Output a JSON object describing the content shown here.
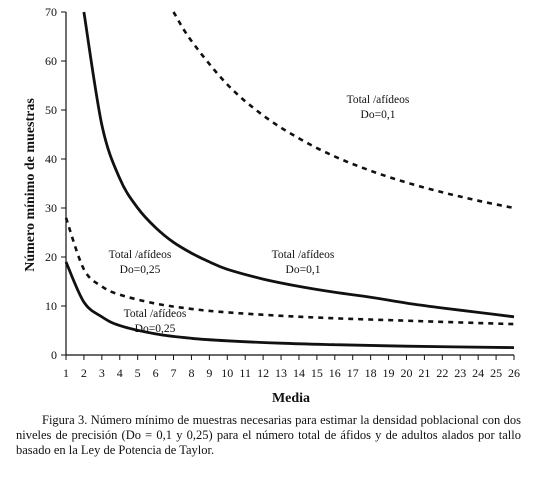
{
  "chart_data": {
    "type": "line",
    "xlabel": "Media",
    "ylabel": "Número mínimo de muestras",
    "xlim": [
      1,
      26
    ],
    "ylim": [
      0,
      70
    ],
    "x_ticks": [
      1,
      2,
      3,
      4,
      5,
      6,
      7,
      8,
      9,
      10,
      11,
      12,
      13,
      14,
      15,
      16,
      17,
      18,
      19,
      20,
      21,
      22,
      23,
      24,
      25,
      26
    ],
    "y_ticks": [
      0,
      10,
      20,
      30,
      40,
      50,
      60,
      70
    ],
    "grid": false,
    "legend": "none",
    "series": [
      {
        "name": "Total /afídeos Do=0,1",
        "label_lines": [
          "Total /afídeos",
          "Do=0,1"
        ],
        "style": "dashed",
        "x": [
          7,
          8,
          10,
          12,
          14,
          16,
          18,
          20,
          22,
          24,
          26
        ],
        "y": [
          70,
          64.1,
          55.2,
          48.9,
          44.2,
          40.5,
          37.6,
          35.2,
          33.2,
          31.5,
          30
        ]
      },
      {
        "name": "Total /afídeos Do=0,25",
        "label_lines": [
          "Total /afídeos",
          "Do=0,25"
        ],
        "style": "dashed",
        "x": [
          1,
          2,
          3,
          4,
          6,
          8,
          10,
          13,
          16,
          20,
          26
        ],
        "y": [
          28,
          17.5,
          14,
          12.3,
          10.5,
          9.4,
          8.7,
          8,
          7.5,
          7,
          6.3
        ]
      },
      {
        "name": "Total /afídeos Do=0,1",
        "label_lines": [
          "Total /afídeos",
          "Do=0,1"
        ],
        "style": "solid",
        "x": [
          2,
          3,
          4,
          5,
          6,
          7,
          8,
          9,
          10,
          12,
          14,
          16,
          18,
          20,
          22,
          24,
          26
        ],
        "y": [
          70,
          47,
          36,
          30,
          26,
          23,
          20.8,
          19,
          17.5,
          15.5,
          14,
          12.8,
          11.8,
          10.6,
          9.6,
          8.7,
          7.8
        ]
      },
      {
        "name": "Total /afídeos Do=0,25",
        "label_lines": [
          "Total /afídeos",
          "Do=0,25"
        ],
        "style": "solid",
        "x": [
          1,
          2,
          3,
          4,
          6,
          8,
          10,
          13,
          16,
          20,
          26
        ],
        "y": [
          19,
          10.8,
          7.8,
          6,
          4.3,
          3.4,
          2.9,
          2.4,
          2.1,
          1.8,
          1.5
        ]
      }
    ]
  },
  "caption": "Figura 3. Número mínimo de muestras necesarias para estimar la densidad poblacional con dos niveles de precisión (Do = 0,1 y 0,25) para el número total de áfidos y de adultos alados por tallo basado en la Ley de Potencia de Taylor."
}
